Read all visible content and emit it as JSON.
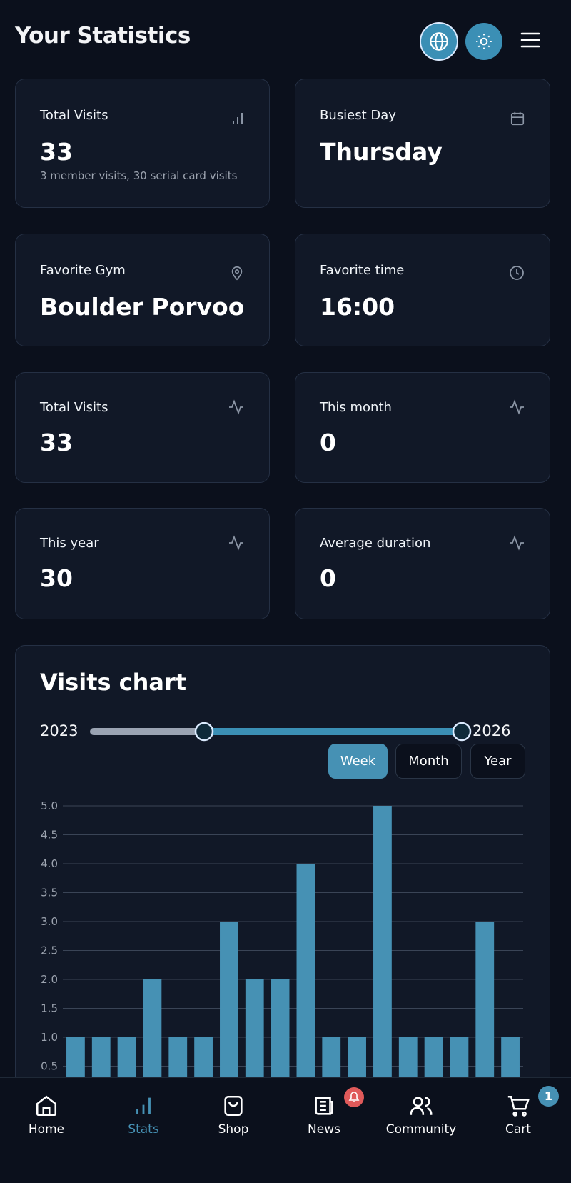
{
  "header": {
    "title": "Your Statistics"
  },
  "cards": [
    {
      "label": "Total Visits",
      "value": 33,
      "note": "3 member visits, 30 serial card visits"
    },
    {
      "label": "Busiest Day",
      "value": "Thursday"
    },
    {
      "label": "Favorite Gym",
      "value": "Boulder Porvoo"
    },
    {
      "label": "Favorite time",
      "value": "16:00"
    },
    {
      "label": "Total Visits",
      "value": 33
    },
    {
      "label": "This month",
      "value": 0
    },
    {
      "label": "This year",
      "value": 30
    },
    {
      "label": "Average duration",
      "value": 0
    }
  ],
  "visits_chart": {
    "title": "Visits chart",
    "range_start": "2023",
    "range_end": "2026",
    "periods": [
      "Week",
      "Month",
      "Year"
    ]
  },
  "chart_data": {
    "type": "bar",
    "values": [
      1,
      1,
      1,
      2,
      1,
      1,
      3,
      2,
      2,
      4,
      1,
      1,
      5,
      1,
      1,
      1,
      3,
      1
    ],
    "color": "#4691b4",
    "ylim": [
      0,
      5
    ],
    "yticks": [
      {
        "value": 0.5,
        "label": "0.5"
      },
      {
        "value": 1,
        "label": "1.0"
      },
      {
        "value": 1.5,
        "label": "1.5"
      },
      {
        "value": 2,
        "label": "2.0"
      },
      {
        "value": 2.5,
        "label": "2.5"
      },
      {
        "value": 3,
        "label": "3.0"
      },
      {
        "value": 3.5,
        "label": "3.5"
      },
      {
        "value": 4,
        "label": "4.0"
      },
      {
        "value": 4.5,
        "label": "4.5"
      },
      {
        "value": 5,
        "label": "5.0"
      }
    ],
    "grid": true
  },
  "nav": {
    "items": [
      "Home",
      "Stats",
      "Shop",
      "News",
      "Community",
      "Cart"
    ],
    "cart_badge": 1
  }
}
